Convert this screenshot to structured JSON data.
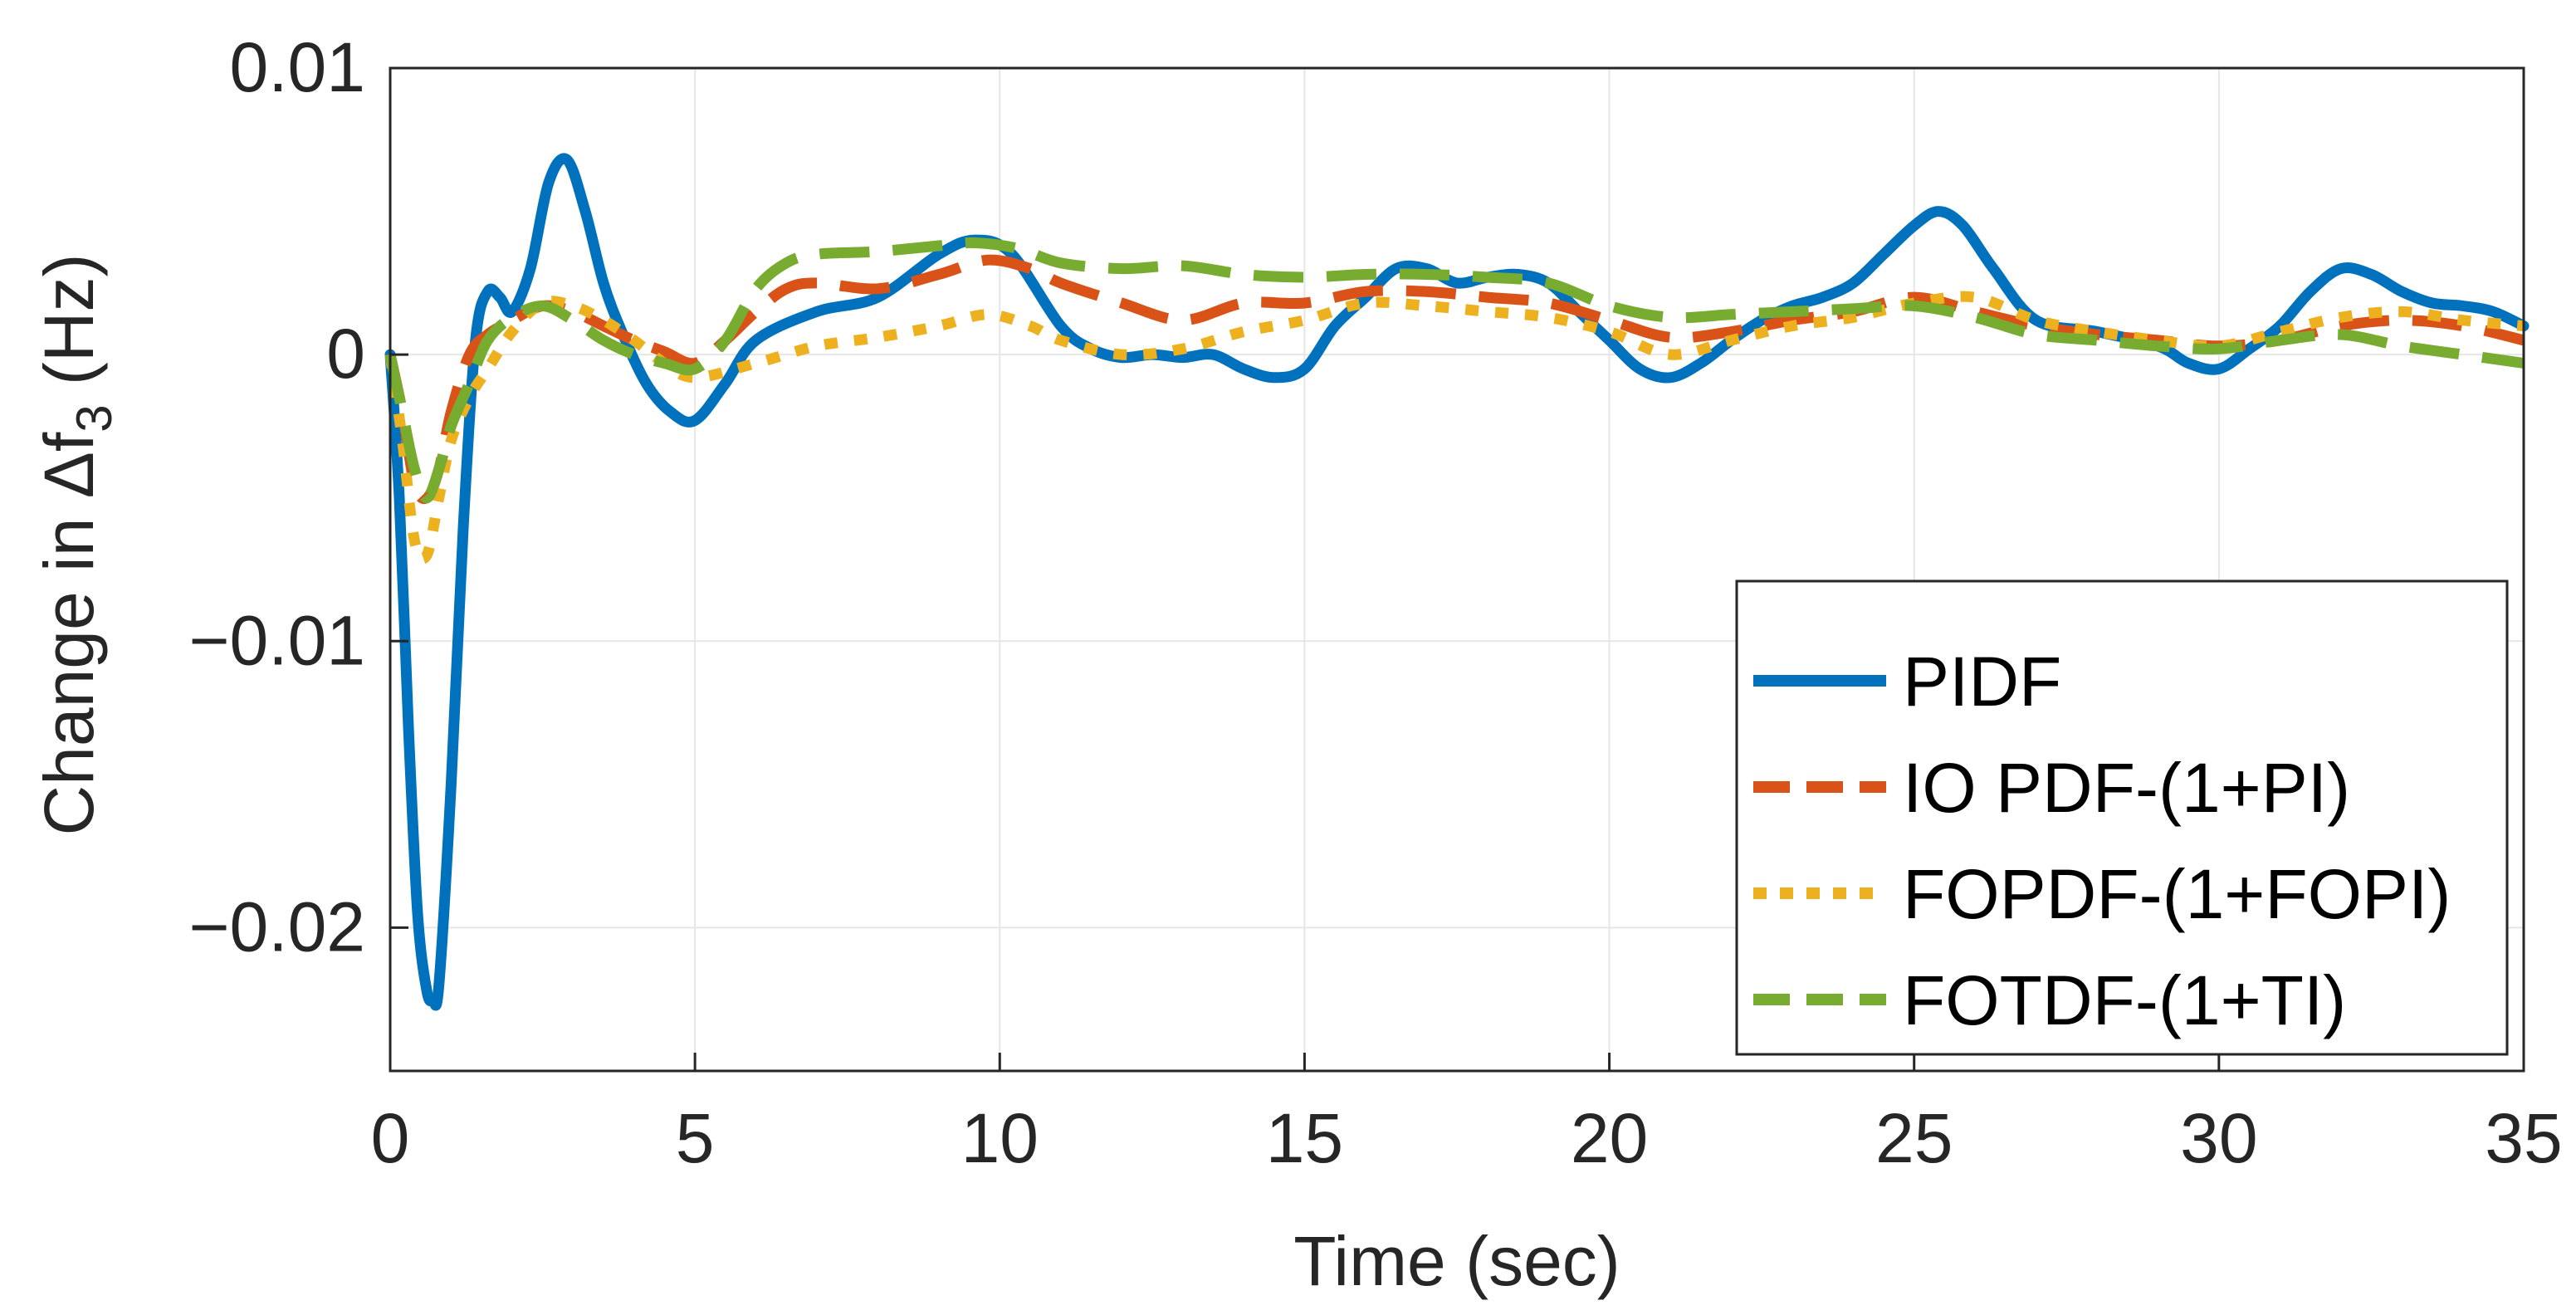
{
  "chart_data": {
    "type": "line",
    "title": "",
    "xlabel": "Time (sec)",
    "ylabel_parts": {
      "before": "Change in Δf",
      "subscript": "3",
      "after": " (Hz)"
    },
    "xlim": [
      0,
      35
    ],
    "ylim": [
      -0.025,
      0.01
    ],
    "xticks": [
      0,
      5,
      10,
      15,
      20,
      25,
      30,
      35
    ],
    "xtick_labels": [
      "0",
      "5",
      "10",
      "15",
      "20",
      "25",
      "30",
      "35"
    ],
    "yticks": [
      -0.02,
      -0.01,
      0,
      0.01
    ],
    "ytick_labels": [
      "−0.02",
      "−0.01",
      "0",
      "0.01"
    ],
    "grid": true,
    "legend_position": "bottom-right",
    "series": [
      {
        "name": "PIDF",
        "color": "#0072BD",
        "style": "solid",
        "x": [
          0,
          0.15,
          0.3,
          0.45,
          0.6,
          0.7,
          0.8,
          1.0,
          1.2,
          1.4,
          1.6,
          1.8,
          2.0,
          2.3,
          2.6,
          2.9,
          3.2,
          3.5,
          3.8,
          4.2,
          4.6,
          5.0,
          5.5,
          6.0,
          7.0,
          8.0,
          9.0,
          9.6,
          10.2,
          11.0,
          11.5,
          12.0,
          12.5,
          13.0,
          13.5,
          14.0,
          14.5,
          15.0,
          15.5,
          16.0,
          16.5,
          17.0,
          17.5,
          18.0,
          18.5,
          19.0,
          19.5,
          20.0,
          20.5,
          21.0,
          21.5,
          22.0,
          22.5,
          23.0,
          23.5,
          24.0,
          24.5,
          25.0,
          25.4,
          25.8,
          26.3,
          27.0,
          28.0,
          29.0,
          29.5,
          30.0,
          30.5,
          31.0,
          31.5,
          32.0,
          32.5,
          33.0,
          33.5,
          34.0,
          34.5,
          35.0
        ],
        "y": [
          0,
          -0.005,
          -0.013,
          -0.0195,
          -0.0222,
          -0.0225,
          -0.022,
          -0.015,
          -0.006,
          0.0005,
          0.0022,
          0.002,
          0.0015,
          0.003,
          0.006,
          0.0068,
          0.005,
          0.0025,
          0.0008,
          -0.001,
          -0.002,
          -0.0023,
          -0.001,
          0.0005,
          0.0015,
          0.002,
          0.0035,
          0.004,
          0.0035,
          0.001,
          0.0002,
          -0.0001,
          0.0,
          -0.0001,
          0.0,
          -0.0005,
          -0.0008,
          -0.0005,
          0.001,
          0.002,
          0.003,
          0.003,
          0.0025,
          0.0027,
          0.0028,
          0.0025,
          0.0015,
          0.0005,
          -0.0005,
          -0.0008,
          -0.0003,
          0.0005,
          0.0012,
          0.0017,
          0.002,
          0.0025,
          0.0035,
          0.0045,
          0.005,
          0.0045,
          0.003,
          0.0012,
          0.0008,
          0.0003,
          -0.0003,
          -0.0005,
          0.0002,
          0.001,
          0.0022,
          0.003,
          0.0028,
          0.0022,
          0.0018,
          0.0017,
          0.0015,
          0.001
        ]
      },
      {
        "name": "IO PDF-(1+PI)",
        "color": "#D95319",
        "style": "dashed",
        "x": [
          0,
          0.2,
          0.4,
          0.6,
          0.8,
          1.0,
          1.3,
          1.6,
          2.0,
          2.5,
          3.0,
          3.5,
          4.0,
          4.5,
          5.0,
          5.5,
          6.0,
          6.5,
          7.0,
          8.0,
          9.0,
          9.8,
          10.5,
          11.0,
          12.0,
          13.0,
          14.0,
          15.0,
          16.0,
          17.0,
          18.0,
          19.0,
          20.0,
          21.0,
          22.0,
          23.0,
          24.0,
          25.0,
          26.0,
          27.0,
          28.0,
          29.0,
          30.0,
          31.0,
          32.0,
          33.0,
          34.0,
          35.0
        ],
        "y": [
          0,
          -0.002,
          -0.0045,
          -0.005,
          -0.004,
          -0.002,
          0.0,
          0.0007,
          0.0012,
          0.0017,
          0.0015,
          0.001,
          0.0005,
          0.0001,
          -0.0003,
          0.0005,
          0.0015,
          0.0023,
          0.0025,
          0.0023,
          0.0028,
          0.0033,
          0.003,
          0.0025,
          0.0018,
          0.0012,
          0.0018,
          0.0018,
          0.0022,
          0.0022,
          0.002,
          0.0018,
          0.0012,
          0.0006,
          0.0008,
          0.0012,
          0.0015,
          0.002,
          0.0015,
          0.001,
          0.0007,
          0.0005,
          0.0003,
          0.0005,
          0.001,
          0.0012,
          0.001,
          0.0005
        ]
      },
      {
        "name": "FOPDF-(1+FOPI)",
        "color": "#EDB120",
        "style": "dotted",
        "x": [
          0,
          0.2,
          0.4,
          0.6,
          0.8,
          1.0,
          1.3,
          1.6,
          2.0,
          2.5,
          3.0,
          3.5,
          4.0,
          4.5,
          5.0,
          6.0,
          7.0,
          8.0,
          9.0,
          9.8,
          10.5,
          11.0,
          12.0,
          13.0,
          14.0,
          15.0,
          16.0,
          17.0,
          18.0,
          19.0,
          20.0,
          21.0,
          22.0,
          23.0,
          24.0,
          25.0,
          26.0,
          27.0,
          28.0,
          29.0,
          30.0,
          31.0,
          32.0,
          33.0,
          34.0,
          35.0
        ],
        "y": [
          0,
          -0.003,
          -0.0065,
          -0.007,
          -0.005,
          -0.003,
          -0.0015,
          -0.0005,
          0.0008,
          0.0018,
          0.0017,
          0.0012,
          0.0005,
          -0.0003,
          -0.0008,
          -0.0003,
          0.0003,
          0.0006,
          0.001,
          0.0014,
          0.001,
          0.0005,
          0.0,
          0.0002,
          0.0008,
          0.0012,
          0.0018,
          0.0017,
          0.0015,
          0.0013,
          0.0008,
          0.0,
          0.0005,
          0.001,
          0.0013,
          0.0018,
          0.002,
          0.0012,
          0.0008,
          0.0005,
          0.0003,
          0.0008,
          0.0013,
          0.0015,
          0.0012,
          0.001
        ]
      },
      {
        "name": "FOTDF-(1+TI)",
        "color": "#77AC30",
        "style": "dashed",
        "x": [
          0,
          0.2,
          0.4,
          0.6,
          0.8,
          1.0,
          1.3,
          1.6,
          2.0,
          2.5,
          3.0,
          3.5,
          4.0,
          4.5,
          5.0,
          5.5,
          6.0,
          6.5,
          7.0,
          8.0,
          9.0,
          9.6,
          10.3,
          11.0,
          12.0,
          13.0,
          14.0,
          15.0,
          16.0,
          17.0,
          18.0,
          19.0,
          20.0,
          21.0,
          22.0,
          23.0,
          24.0,
          25.0,
          26.0,
          27.0,
          28.0,
          29.0,
          30.0,
          31.0,
          32.0,
          33.0,
          34.0,
          35.0
        ],
        "y": [
          0,
          -0.002,
          -0.004,
          -0.005,
          -0.004,
          -0.0025,
          -0.001,
          0.0005,
          0.0013,
          0.0017,
          0.0012,
          0.0005,
          0.0,
          -0.0003,
          -0.0005,
          0.0005,
          0.0023,
          0.0032,
          0.0035,
          0.0036,
          0.0038,
          0.0039,
          0.0037,
          0.0032,
          0.003,
          0.0031,
          0.0028,
          0.0027,
          0.0028,
          0.0028,
          0.0027,
          0.0025,
          0.0017,
          0.0013,
          0.0014,
          0.0015,
          0.0016,
          0.0017,
          0.0013,
          0.0007,
          0.0005,
          0.0003,
          0.0002,
          0.0005,
          0.0007,
          0.0003,
          0.0,
          -0.0003
        ]
      }
    ]
  }
}
